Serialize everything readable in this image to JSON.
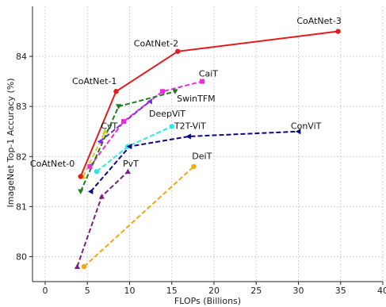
{
  "chart_data": {
    "type": "line",
    "xlabel": "FLOPs (Billions)",
    "ylabel": "ImageNet Top-1 Accuracy (%)",
    "xlim": [
      -1.5,
      40
    ],
    "ylim": [
      79.5,
      85.0
    ],
    "xticks": [
      0,
      5,
      10,
      15,
      20,
      25,
      30,
      35,
      40
    ],
    "yticks": [
      80,
      81,
      82,
      83,
      84
    ],
    "grid": true,
    "series": [
      {
        "name": "CoAtNet",
        "color": "#e41a1c",
        "linestyle": "solid",
        "marker": "circle",
        "labels": [
          "CoAtNet-0",
          "CoAtNet-1",
          "CoAtNet-2",
          "CoAtNet-3"
        ],
        "x": [
          4.2,
          8.4,
          15.7,
          34.7
        ],
        "y": [
          81.6,
          83.3,
          84.1,
          84.5
        ]
      },
      {
        "name": "CaiT",
        "color": "#ee2bdc",
        "linestyle": "dashed",
        "marker": "square",
        "x": [
          5.3,
          9.3,
          13.9,
          18.6
        ],
        "y": [
          81.8,
          82.7,
          83.3,
          83.5
        ]
      },
      {
        "name": "SwinTFM",
        "color": "#1e7d1e",
        "linestyle": "dashed",
        "marker": "triangle-down",
        "x": [
          4.2,
          8.7,
          15.4
        ],
        "y": [
          81.3,
          83.0,
          83.3
        ]
      },
      {
        "name": "DeepViT",
        "color": "#7b2be2",
        "linestyle": "dashed",
        "marker": "triangle-left",
        "x": [
          6.5,
          12.4
        ],
        "y": [
          82.3,
          83.1
        ]
      },
      {
        "name": "CvT",
        "color": "#d6c92a",
        "linestyle": "dashed",
        "marker": "triangle-up",
        "x": [
          4.5,
          7.1
        ],
        "y": [
          81.6,
          82.5
        ]
      },
      {
        "name": "T2T-ViT",
        "color": "#2be8e8",
        "linestyle": "dashed",
        "marker": "circle",
        "x": [
          6.1,
          9.8,
          15.0
        ],
        "y": [
          81.7,
          82.2,
          82.6
        ]
      },
      {
        "name": "ConViT",
        "color": "#0a0a80",
        "linestyle": "dashed",
        "marker": "triangle-left",
        "x": [
          5.4,
          10.0,
          17.0,
          30.0
        ],
        "y": [
          81.3,
          82.2,
          82.4,
          82.5
        ]
      },
      {
        "name": "PvT",
        "color": "#7e1e7e",
        "linestyle": "dashed",
        "marker": "triangle-up",
        "x": [
          3.8,
          6.7,
          9.8
        ],
        "y": [
          79.8,
          81.2,
          81.7
        ]
      },
      {
        "name": "DeiT",
        "color": "#f0a818",
        "linestyle": "dashed",
        "marker": "circle",
        "x": [
          4.6,
          17.6
        ],
        "y": [
          79.8,
          81.8
        ]
      }
    ],
    "annotations": [
      {
        "text": "CoAtNet-0",
        "x": 3.5,
        "y": 81.8,
        "anchor": "end"
      },
      {
        "text": "CoAtNet-1",
        "x": 3.2,
        "y": 83.45,
        "anchor": "start"
      },
      {
        "text": "CoAtNet-2",
        "x": 10.5,
        "y": 84.2,
        "anchor": "start"
      },
      {
        "text": "CoAtNet-3",
        "x": 29.8,
        "y": 84.65,
        "anchor": "start"
      },
      {
        "text": "CaiT",
        "x": 18.2,
        "y": 83.6,
        "anchor": "start"
      },
      {
        "text": "SwinTFM",
        "x": 15.6,
        "y": 83.1,
        "anchor": "start"
      },
      {
        "text": "DeepViT",
        "x": 12.3,
        "y": 82.8,
        "anchor": "start"
      },
      {
        "text": "CvT",
        "x": 6.6,
        "y": 82.55,
        "anchor": "start"
      },
      {
        "text": "T2T-ViT",
        "x": 15.3,
        "y": 82.55,
        "anchor": "start"
      },
      {
        "text": "ConViT",
        "x": 29.1,
        "y": 82.55,
        "anchor": "start"
      },
      {
        "text": "PvT",
        "x": 9.2,
        "y": 81.8,
        "anchor": "start"
      },
      {
        "text": "DeiT",
        "x": 17.4,
        "y": 81.95,
        "anchor": "start"
      }
    ]
  }
}
